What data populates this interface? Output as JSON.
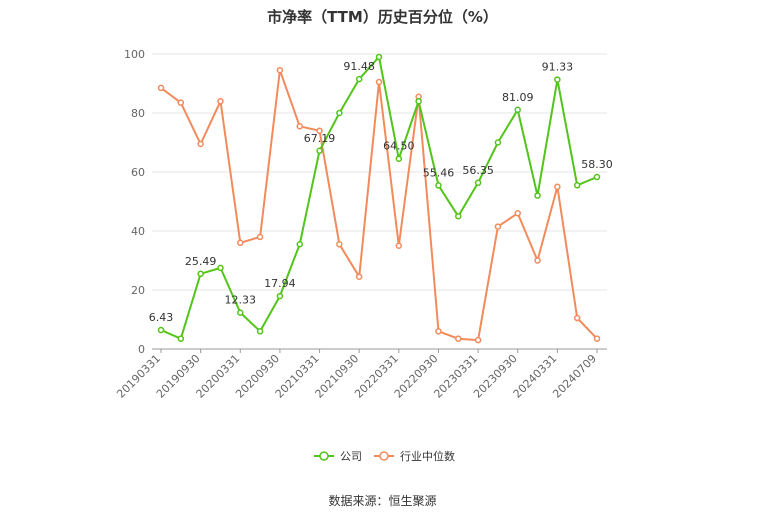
{
  "chart_data": {
    "type": "line",
    "title": "市净率（TTM）历史百分位（%）",
    "source": "数据来源：恒生聚源",
    "ylim": [
      0,
      100
    ],
    "yticks": [
      0,
      20,
      40,
      60,
      80,
      100
    ],
    "grid": true,
    "legend_position": "bottom-center",
    "x": [
      "20190331",
      "20190630",
      "20190930",
      "20191231",
      "20200331",
      "20200630",
      "20200930",
      "20201231",
      "20210331",
      "20210630",
      "20210930",
      "20211231",
      "20220331",
      "20220630",
      "20220930",
      "20221231",
      "20230331",
      "20230630",
      "20230930",
      "20231231",
      "20240331",
      "20240630",
      "20240709"
    ],
    "x_tick_labels": [
      "20190331",
      "20190930",
      "20200331",
      "20200930",
      "20210331",
      "20210930",
      "20220331",
      "20220930",
      "20230331",
      "20230930",
      "20240331",
      "20240709"
    ],
    "series": [
      {
        "name": "公司",
        "color": "#52c41a",
        "values": [
          6.43,
          3.5,
          25.49,
          27.5,
          12.33,
          6.0,
          17.94,
          35.5,
          67.19,
          80.0,
          91.48,
          99.0,
          64.5,
          84.0,
          55.46,
          45.0,
          56.35,
          70.0,
          81.09,
          52.0,
          91.33,
          55.5,
          58.3
        ],
        "labeled": {
          "0": "6.43",
          "2": "25.49",
          "4": "12.33",
          "6": "17.94",
          "8": "67.19",
          "10": "91.48",
          "12": "64.50",
          "14": "55.46",
          "16": "56.35",
          "18": "81.09",
          "20": "91.33",
          "22": "58.30"
        }
      },
      {
        "name": "行业中位数",
        "color": "#f28b5c",
        "values": [
          88.5,
          83.5,
          69.5,
          84.0,
          36.0,
          38.0,
          94.5,
          75.5,
          74.0,
          35.5,
          24.5,
          90.5,
          35.0,
          85.5,
          6.0,
          3.5,
          3.0,
          41.5,
          46.0,
          30.0,
          55.0,
          10.5,
          3.5
        ]
      }
    ]
  }
}
